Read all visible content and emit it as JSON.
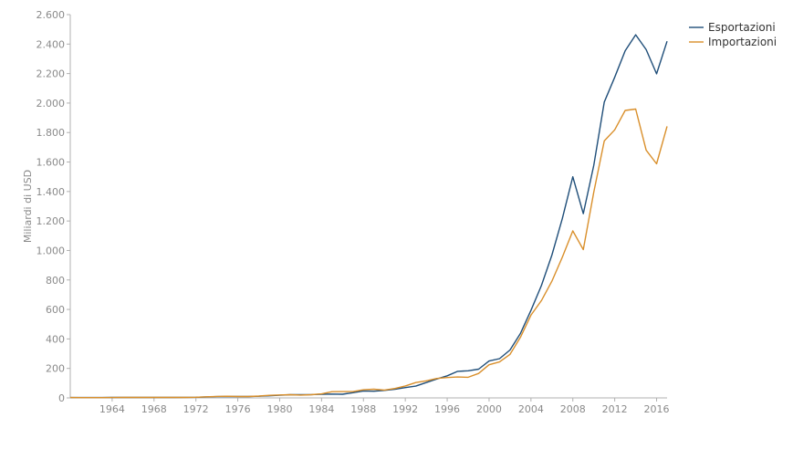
{
  "chart_data": {
    "type": "line",
    "title": "",
    "xlabel": "",
    "ylabel": "Miliardi di USD",
    "xlim": [
      1960,
      2017
    ],
    "ylim": [
      0,
      2600
    ],
    "x_ticks": [
      1964,
      1968,
      1972,
      1976,
      1980,
      1984,
      1988,
      1992,
      1996,
      2000,
      2004,
      2008,
      2012,
      2016
    ],
    "y_ticks": [
      0,
      200,
      400,
      600,
      800,
      1000,
      1200,
      1400,
      1600,
      1800,
      2000,
      2200,
      2400,
      2600
    ],
    "y_tick_labels": [
      "0",
      "200",
      "400",
      "600",
      "800",
      "1.000",
      "1.200",
      "1.400",
      "1.600",
      "1.800",
      "2.000",
      "2.200",
      "2.400",
      "2.600"
    ],
    "grid": false,
    "legend_position": "top-right",
    "x": [
      1960,
      1961,
      1962,
      1963,
      1964,
      1965,
      1966,
      1967,
      1968,
      1969,
      1970,
      1971,
      1972,
      1973,
      1974,
      1975,
      1976,
      1977,
      1978,
      1979,
      1980,
      1981,
      1982,
      1983,
      1984,
      1985,
      1986,
      1987,
      1988,
      1989,
      1990,
      1991,
      1992,
      1993,
      1994,
      1995,
      1996,
      1997,
      1998,
      1999,
      2000,
      2001,
      2002,
      2003,
      2004,
      2005,
      2006,
      2007,
      2008,
      2009,
      2010,
      2011,
      2012,
      2013,
      2014,
      2015,
      2016,
      2017
    ],
    "series": [
      {
        "name": "Esportazioni",
        "color": "#1f4e79",
        "values": [
          2.6,
          2.4,
          2.2,
          2.5,
          3.0,
          3.2,
          3.4,
          3.2,
          3.0,
          3.1,
          3.4,
          4.0,
          4.5,
          6.5,
          8.5,
          9.5,
          9.0,
          9.5,
          11.0,
          14.0,
          18.0,
          21.5,
          21.5,
          22.0,
          25.0,
          26.0,
          25.0,
          35.0,
          47.0,
          45.0,
          51.0,
          59.0,
          70.0,
          80.0,
          104.0,
          128.0,
          150.0,
          180.0,
          184.0,
          195.0,
          250.0,
          266.0,
          325.0,
          438.0,
          593.0,
          762.0,
          969.0,
          1218.0,
          1500.0,
          1250.0,
          1578.0,
          2007.0,
          2175.0,
          2355.0,
          2463.0,
          2362.0,
          2198.0,
          2419.0
        ]
      },
      {
        "name": "Importazioni",
        "color": "#d98f2b",
        "values": [
          2.3,
          2.0,
          1.7,
          1.9,
          2.4,
          2.8,
          3.3,
          3.1,
          3.0,
          2.9,
          3.2,
          3.3,
          4.3,
          7.5,
          10.0,
          11.0,
          9.0,
          9.5,
          12.5,
          17.5,
          20.0,
          21.5,
          19.0,
          21.5,
          27.0,
          42.0,
          43.0,
          43.0,
          55.0,
          59.0,
          53.0,
          64.0,
          81.0,
          104.0,
          116.0,
          132.0,
          138.0,
          142.0,
          140.0,
          166.0,
          225.0,
          244.0,
          295.0,
          412.0,
          561.0,
          660.0,
          792.0,
          956.0,
          1133.0,
          1006.0,
          1396.0,
          1743.0,
          1818.0,
          1950.0,
          1959.0,
          1680.0,
          1588.0,
          1842.0
        ]
      }
    ]
  }
}
